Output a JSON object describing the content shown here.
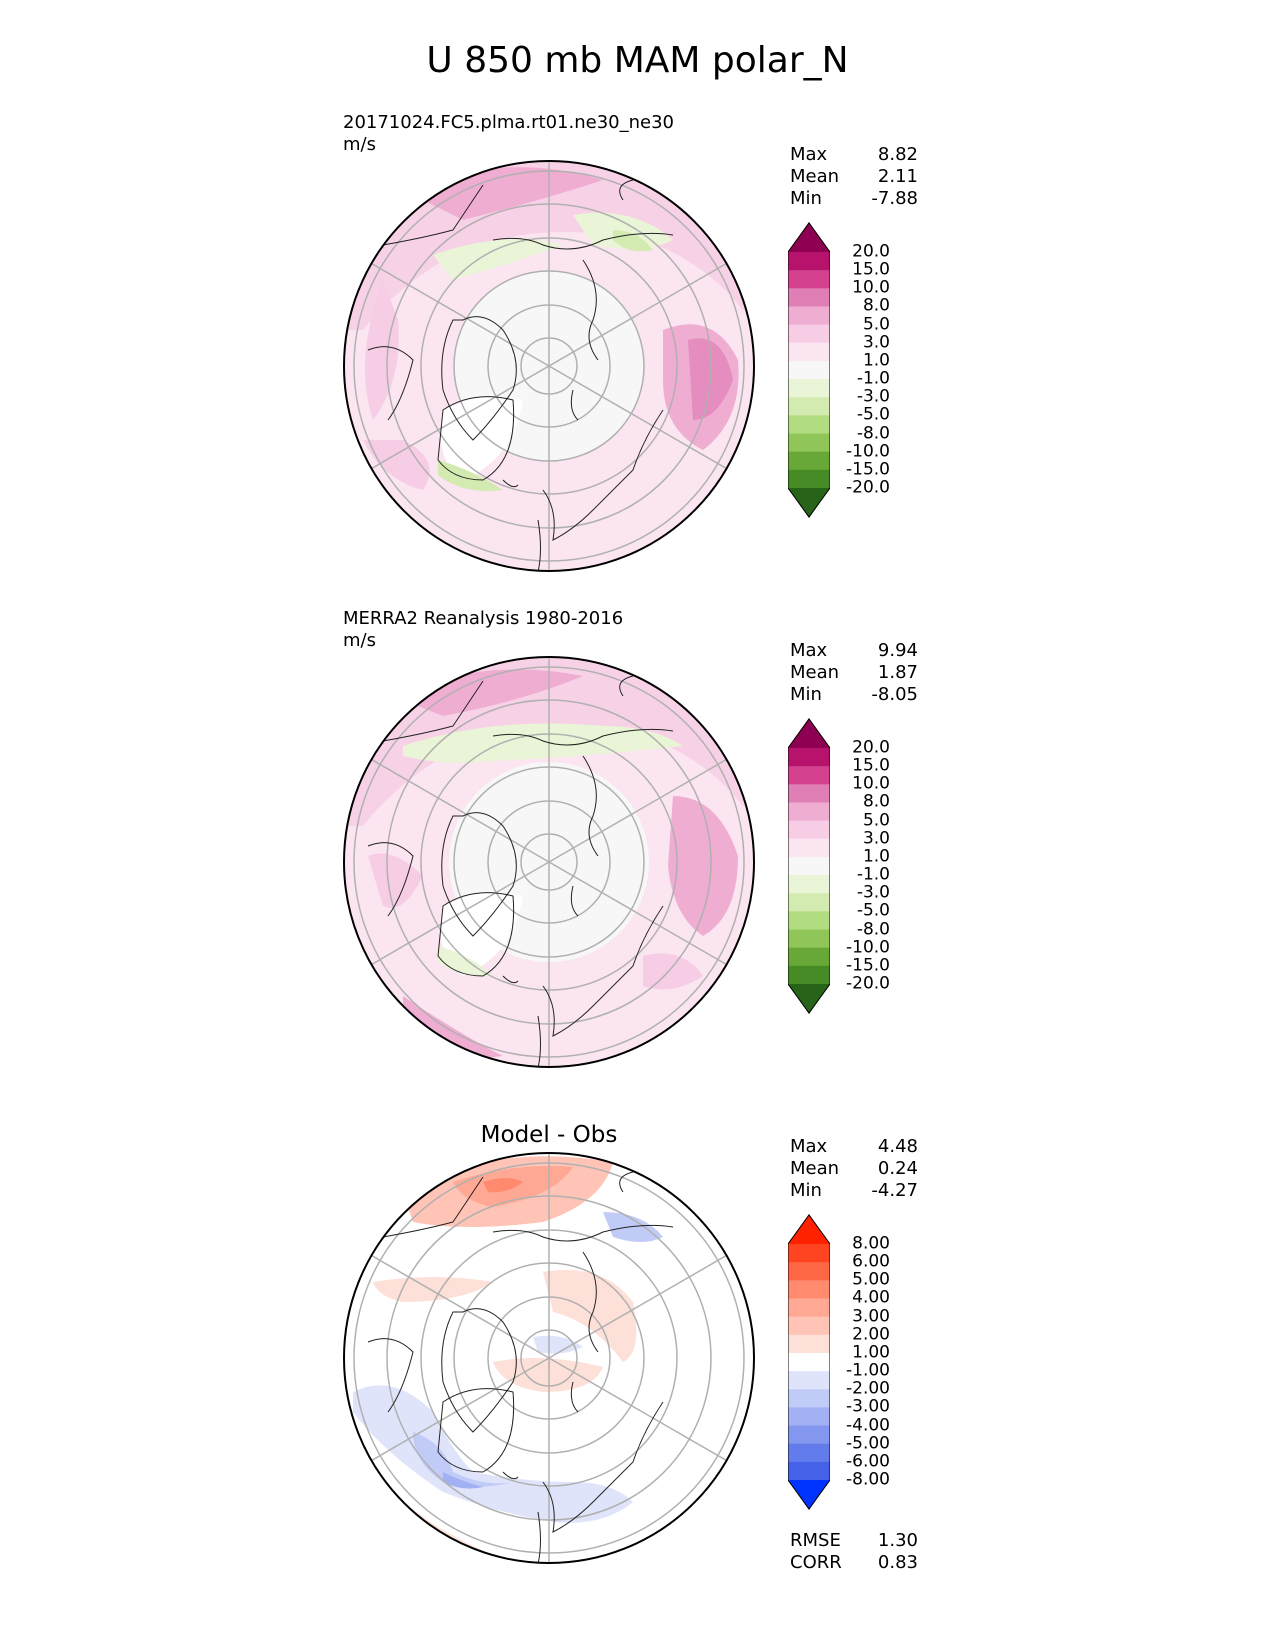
{
  "title": "U 850 mb MAM polar_N",
  "panels": [
    {
      "case_name": "20171024.FC5.plma.rt01.ne30_ne30",
      "units": "m/s",
      "subtitle": "",
      "stats": [
        {
          "label": "Max",
          "value": "8.82"
        },
        {
          "label": "Mean",
          "value": "2.11"
        },
        {
          "label": "Min",
          "value": "-7.88"
        }
      ],
      "colorbar_levels": [
        "20.0",
        "15.0",
        "10.0",
        "8.0",
        "5.0",
        "3.0",
        "1.0",
        "-1.0",
        "-3.0",
        "-5.0",
        "-8.0",
        "-10.0",
        "-15.0",
        "-20.0"
      ],
      "colors": [
        "#8e0152",
        "#b8136c",
        "#d3418f",
        "#e07fb5",
        "#efadd2",
        "#f6cde5",
        "#fbe5f0",
        "#f7f7f7",
        "#e9f5d6",
        "#d3ebb0",
        "#b2dc80",
        "#8fc559",
        "#68a838",
        "#468b25",
        "#276419"
      ]
    },
    {
      "case_name": "MERRA2 Reanalysis 1980-2016",
      "units": "m/s",
      "subtitle": "",
      "stats": [
        {
          "label": "Max",
          "value": "9.94"
        },
        {
          "label": "Mean",
          "value": "1.87"
        },
        {
          "label": "Min",
          "value": "-8.05"
        }
      ],
      "colorbar_levels": [
        "20.0",
        "15.0",
        "10.0",
        "8.0",
        "5.0",
        "3.0",
        "1.0",
        "-1.0",
        "-3.0",
        "-5.0",
        "-8.0",
        "-10.0",
        "-15.0",
        "-20.0"
      ],
      "colors": [
        "#8e0152",
        "#b8136c",
        "#d3418f",
        "#e07fb5",
        "#efadd2",
        "#f6cde5",
        "#fbe5f0",
        "#f7f7f7",
        "#e9f5d6",
        "#d3ebb0",
        "#b2dc80",
        "#8fc559",
        "#68a838",
        "#468b25",
        "#276419"
      ]
    },
    {
      "case_name": "",
      "units": "",
      "subtitle": "Model - Obs",
      "stats": [
        {
          "label": "Max",
          "value": "4.48"
        },
        {
          "label": "Mean",
          "value": "0.24"
        },
        {
          "label": "Min",
          "value": "-4.27"
        }
      ],
      "colorbar_levels": [
        "8.00",
        "6.00",
        "5.00",
        "4.00",
        "3.00",
        "2.00",
        "1.00",
        "-1.00",
        "-2.00",
        "-3.00",
        "-4.00",
        "-5.00",
        "-6.00",
        "-8.00"
      ],
      "colors": [
        "#ff2200",
        "#ff4422",
        "#ff6644",
        "#ff8a6e",
        "#ffa893",
        "#ffc4b5",
        "#fde0d8",
        "#ffffff",
        "#dfe4fb",
        "#c1cbf7",
        "#a2b1f3",
        "#8397ef",
        "#637ceb",
        "#4461e8",
        "#0033ff"
      ]
    }
  ],
  "error_stats": [
    {
      "label": "RMSE",
      "value": "1.30"
    },
    {
      "label": "CORR",
      "value": "0.83"
    }
  ]
}
